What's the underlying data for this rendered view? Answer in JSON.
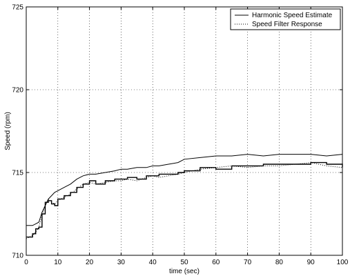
{
  "chart_data": {
    "type": "line",
    "title": "",
    "xlabel": "time (sec)",
    "ylabel": "Speed (rpm)",
    "xlim": [
      0,
      100
    ],
    "ylim": [
      710,
      725
    ],
    "xticks": [
      0,
      10,
      20,
      30,
      40,
      50,
      60,
      70,
      80,
      90,
      100
    ],
    "yticks": [
      710,
      715,
      720,
      725
    ],
    "x_tick_labels": [
      "0",
      "10",
      "20",
      "30",
      "40",
      "50",
      "60",
      "70",
      "80",
      "90",
      "100"
    ],
    "y_tick_labels": [
      "710",
      "715",
      "720",
      "725"
    ],
    "grid": true,
    "legend_position": "top-right",
    "series": [
      {
        "name": "Harmonic Speed Estimate",
        "style": "solid",
        "color": "#000000",
        "x": [
          0,
          2,
          3,
          4,
          5,
          6,
          7,
          8,
          9,
          10,
          12,
          14,
          16,
          18,
          20,
          22,
          25,
          28,
          30,
          32,
          35,
          38,
          40,
          42,
          45,
          48,
          50,
          55,
          60,
          65,
          70,
          75,
          80,
          85,
          90,
          95,
          100
        ],
        "y": [
          711.8,
          711.8,
          711.9,
          712.0,
          712.6,
          713.0,
          713.4,
          713.6,
          713.8,
          713.9,
          714.1,
          714.3,
          714.6,
          714.8,
          714.9,
          714.9,
          715.0,
          715.1,
          715.2,
          715.2,
          715.3,
          715.3,
          715.4,
          715.4,
          715.5,
          715.6,
          715.8,
          715.9,
          716.0,
          716.0,
          716.1,
          716.0,
          716.1,
          716.1,
          716.1,
          716.0,
          716.1
        ]
      },
      {
        "name": "Speed Filter Response",
        "style": "dotted",
        "color": "#000000",
        "x": [
          0,
          2,
          3,
          4,
          5,
          6,
          7,
          8,
          9,
          10,
          12,
          14,
          16,
          18,
          20,
          22,
          25,
          28,
          30,
          32,
          35,
          38,
          40,
          42,
          45,
          48,
          50,
          55,
          60,
          65,
          70,
          75,
          80,
          85,
          90,
          95,
          100
        ],
        "y": [
          711.0,
          711.2,
          711.4,
          711.7,
          712.4,
          713.0,
          713.4,
          713.2,
          713.1,
          713.3,
          713.5,
          713.7,
          714.0,
          714.3,
          714.4,
          714.3,
          714.4,
          714.5,
          714.5,
          714.6,
          714.5,
          714.7,
          714.8,
          714.7,
          714.8,
          714.9,
          715.0,
          715.2,
          715.3,
          715.4,
          715.3,
          715.4,
          715.4,
          715.5,
          715.6,
          715.4,
          715.3
        ]
      },
      {
        "name": "",
        "style": "staircase",
        "color": "#000000",
        "x": [
          0,
          2,
          3,
          4,
          5,
          6,
          7,
          8,
          9,
          10,
          12,
          14,
          16,
          18,
          20,
          22,
          25,
          28,
          30,
          32,
          35,
          38,
          40,
          42,
          45,
          48,
          50,
          55,
          60,
          65,
          70,
          75,
          80,
          85,
          90,
          95,
          100
        ],
        "y": [
          711.1,
          711.3,
          711.6,
          711.7,
          712.5,
          713.2,
          713.3,
          713.1,
          713.0,
          713.4,
          713.6,
          713.8,
          714.1,
          714.3,
          714.5,
          714.3,
          714.5,
          714.6,
          714.6,
          714.7,
          714.6,
          714.8,
          714.8,
          714.9,
          714.9,
          715.0,
          715.1,
          715.3,
          715.2,
          715.4,
          715.4,
          715.5,
          715.5,
          715.5,
          715.6,
          715.5,
          715.3
        ]
      }
    ]
  }
}
